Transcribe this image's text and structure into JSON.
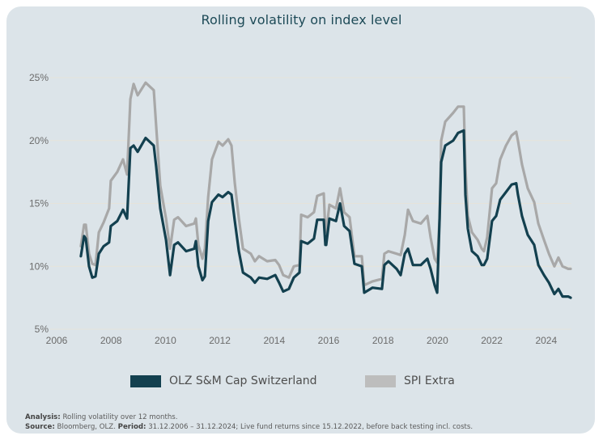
{
  "chart_data": {
    "type": "line",
    "title": "Rolling volatility on index level",
    "xlabel": "",
    "ylabel": "",
    "xlim": [
      2006,
      2025.2
    ],
    "ylim": [
      5,
      25
    ],
    "x_ticks": [
      2006,
      2008,
      2010,
      2012,
      2014,
      2016,
      2018,
      2020,
      2022,
      2024
    ],
    "x_tick_labels": [
      "2006",
      "2008",
      "2010",
      "2012",
      "2014",
      "2016",
      "2018",
      "2020",
      "2022",
      "2024"
    ],
    "y_ticks": [
      5,
      10,
      15,
      20,
      25
    ],
    "y_tick_labels": [
      "5%",
      "10%",
      "15%",
      "20%",
      "25%"
    ],
    "grid": "horizontal",
    "legend_position": "bottom",
    "x": [
      2006.89,
      2007.01,
      2007.07,
      2007.19,
      2007.31,
      2007.43,
      2007.55,
      2007.73,
      2007.93,
      2007.99,
      2008.23,
      2008.44,
      2008.59,
      2008.71,
      2008.83,
      2008.98,
      2009.27,
      2009.57,
      2009.66,
      2009.81,
      2010.02,
      2010.17,
      2010.32,
      2010.46,
      2010.76,
      2011.06,
      2011.12,
      2011.21,
      2011.36,
      2011.45,
      2011.57,
      2011.71,
      2011.95,
      2012.1,
      2012.31,
      2012.43,
      2012.55,
      2012.7,
      2012.85,
      2013.14,
      2013.29,
      2013.44,
      2013.74,
      2014.04,
      2014.18,
      2014.33,
      2014.54,
      2014.72,
      2014.93,
      2014.99,
      2015.23,
      2015.46,
      2015.58,
      2015.82,
      2015.88,
      2015.91,
      2016.03,
      2016.27,
      2016.42,
      2016.57,
      2016.77,
      2016.95,
      2017.22,
      2017.31,
      2017.61,
      2017.96,
      2018.05,
      2018.2,
      2018.5,
      2018.65,
      2018.8,
      2018.92,
      2019.1,
      2019.39,
      2019.63,
      2019.75,
      2019.9,
      2019.99,
      2020.08,
      2020.14,
      2020.29,
      2020.58,
      2020.76,
      2020.97,
      2021.03,
      2021.12,
      2021.27,
      2021.48,
      2021.63,
      2021.71,
      2021.83,
      2022.01,
      2022.16,
      2022.31,
      2022.52,
      2022.73,
      2022.9,
      2022.96,
      2023.11,
      2023.32,
      2023.56,
      2023.71,
      2023.92,
      2024.1,
      2024.3,
      2024.45,
      2024.6,
      2024.81,
      2024.9
    ],
    "series": [
      {
        "name": "OLZ S&M Cap Switzerland",
        "color": "#13404f",
        "values": [
          10.8,
          12.4,
          12.2,
          10.0,
          9.1,
          9.2,
          11.0,
          11.6,
          11.9,
          13.2,
          13.6,
          14.5,
          13.8,
          19.4,
          19.6,
          19.1,
          20.2,
          19.6,
          17.9,
          14.6,
          12.1,
          9.3,
          11.7,
          11.9,
          11.2,
          11.4,
          12.0,
          10.0,
          8.9,
          9.2,
          13.6,
          15.1,
          15.7,
          15.5,
          15.9,
          15.7,
          13.6,
          11.2,
          9.5,
          9.1,
          8.7,
          9.1,
          9.0,
          9.3,
          8.7,
          8.0,
          8.2,
          9.1,
          9.5,
          12.0,
          11.8,
          12.2,
          13.7,
          13.7,
          11.7,
          11.7,
          13.8,
          13.6,
          15.0,
          13.2,
          12.8,
          10.2,
          10.0,
          7.9,
          8.3,
          8.2,
          10.1,
          10.4,
          9.8,
          9.3,
          11.0,
          11.4,
          10.1,
          10.1,
          10.6,
          9.8,
          8.5,
          7.9,
          13.8,
          18.3,
          19.6,
          20.0,
          20.6,
          20.8,
          15.7,
          13.0,
          11.2,
          10.8,
          10.1,
          10.1,
          10.6,
          13.6,
          14.0,
          15.3,
          15.9,
          16.5,
          16.6,
          15.7,
          14.0,
          12.5,
          11.7,
          10.1,
          9.3,
          8.7,
          7.8,
          8.2,
          7.6,
          7.6,
          7.5
        ]
      },
      {
        "name": "SPI Extra",
        "color": "#a8a8a8",
        "values": [
          11.6,
          13.3,
          13.3,
          11.0,
          10.2,
          10.1,
          12.7,
          13.5,
          14.6,
          16.8,
          17.5,
          18.5,
          17.3,
          23.3,
          24.5,
          23.6,
          24.6,
          24.0,
          21.1,
          16.4,
          13.8,
          11.4,
          13.7,
          13.9,
          13.2,
          13.4,
          13.8,
          11.7,
          10.6,
          11.4,
          15.5,
          18.5,
          19.9,
          19.6,
          20.1,
          19.6,
          16.6,
          13.8,
          11.4,
          11.0,
          10.4,
          10.8,
          10.4,
          10.5,
          10.1,
          9.3,
          9.1,
          10.0,
          10.1,
          14.1,
          13.9,
          14.3,
          15.6,
          15.8,
          12.7,
          12.7,
          14.9,
          14.6,
          16.2,
          14.3,
          13.9,
          10.8,
          10.8,
          8.5,
          8.8,
          9.0,
          11.0,
          11.2,
          11.0,
          10.9,
          12.5,
          14.5,
          13.6,
          13.4,
          14.0,
          12.3,
          10.6,
          10.3,
          13.8,
          20.0,
          21.5,
          22.2,
          22.7,
          22.7,
          17.9,
          14.0,
          12.7,
          12.1,
          11.4,
          11.2,
          12.3,
          16.2,
          16.6,
          18.5,
          19.6,
          20.4,
          20.7,
          20.0,
          18.1,
          16.2,
          15.1,
          13.4,
          12.1,
          11.0,
          10.0,
          10.7,
          10.0,
          9.8,
          9.8
        ]
      }
    ]
  },
  "legend": {
    "items": [
      {
        "label": "OLZ S&M Cap Switzerland",
        "color": "#13404f"
      },
      {
        "label": "SPI Extra",
        "color": "#bdbdbd"
      }
    ]
  },
  "footnote": {
    "analysis_label": "Analysis:",
    "analysis_text": " Rolling volatility over 12 months.",
    "source_label": "Source:",
    "source_text": " Bloomberg, OLZ. ",
    "period_label": "Period:",
    "period_text": " 31.12.2006 – 31.12.2024; Live fund returns since 15.12.2022, before back testing incl. costs."
  }
}
